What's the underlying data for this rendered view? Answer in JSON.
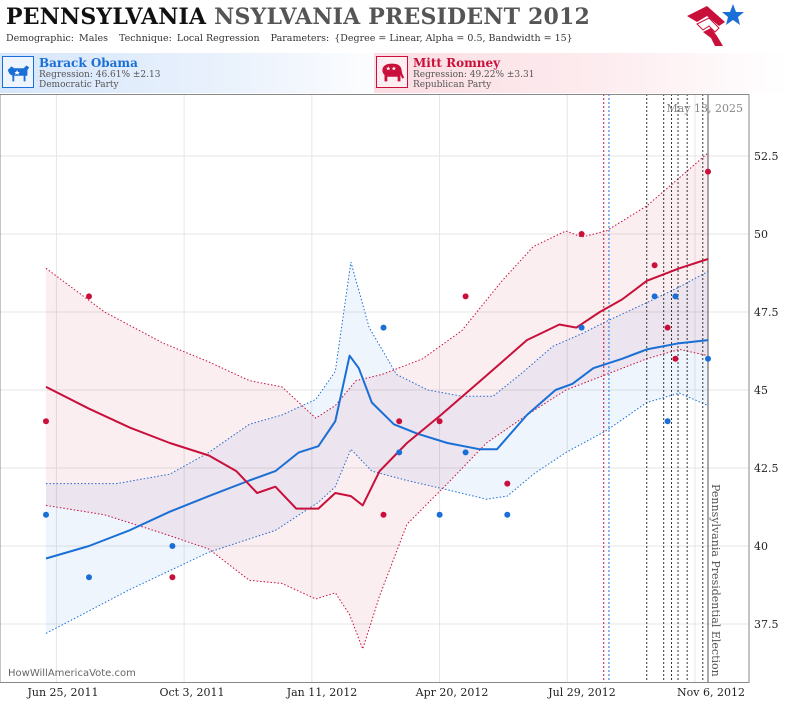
{
  "header": {
    "title_state": "PENNSYLVANIA",
    "title_rest": "NSYLVANIA PRESIDENT 2012",
    "demographic_label": "Demographic:",
    "demographic_value": "Males",
    "technique_label": "Technique:",
    "technique_value": "Local Regression",
    "parameters_label": "Parameters:",
    "parameters_value": "{Degree = Linear, Alpha = 0.5, Bandwidth = 15}",
    "logo_icon": "star-flag-logo-icon"
  },
  "candidates": {
    "dem": {
      "name": "Barack Obama",
      "regression": "Regression: 46.61% ±2.13",
      "party": "Democratic Party",
      "icon": "donkey-icon",
      "color": "#1a6fd6"
    },
    "rep": {
      "name": "Mitt Romney",
      "regression": "Regression: 49.22% ±3.31",
      "party": "Republican Party",
      "icon": "elephant-icon",
      "color": "#c8103a"
    }
  },
  "watermark": "HowWillAmericaVote.com",
  "chart_data": {
    "type": "scatter",
    "date_annotation": "May 13, 2025",
    "event_label": "Pennsylvania Presidential Election",
    "x_ticks": [
      "Jun 25, 2011",
      "Oct 3, 2011",
      "Jan 11, 2012",
      "Apr 20, 2012",
      "Jul 29, 2012",
      "Nov 6, 2012"
    ],
    "y_ticks": [
      "37.5",
      "40",
      "42.5",
      "45",
      "47.5",
      "50",
      "52.5"
    ],
    "ylim": [
      36.3,
      54.4
    ],
    "xlim": [
      "2011-06-06",
      "2012-11-20"
    ],
    "grid": true,
    "series": [
      {
        "name": "Barack Obama",
        "color": "#1a6fd6",
        "points": [
          {
            "x": "2011-06-17",
            "y": 41
          },
          {
            "x": "2011-07-20",
            "y": 39
          },
          {
            "x": "2011-09-22",
            "y": 40
          },
          {
            "x": "2012-03-02",
            "y": 47
          },
          {
            "x": "2012-03-14",
            "y": 43
          },
          {
            "x": "2012-04-14",
            "y": 41
          },
          {
            "x": "2012-05-04",
            "y": 43
          },
          {
            "x": "2012-06-05",
            "y": 41
          },
          {
            "x": "2012-08-01",
            "y": 47
          },
          {
            "x": "2012-09-26",
            "y": 48
          },
          {
            "x": "2012-10-06",
            "y": 44
          },
          {
            "x": "2012-10-12",
            "y": 48
          },
          {
            "x": "2012-11-06",
            "y": 46
          }
        ],
        "trend": [
          {
            "x": "2011-06-17",
            "y": 39.6
          },
          {
            "x": "2011-07-20",
            "y": 40.0
          },
          {
            "x": "2011-08-20",
            "y": 40.5
          },
          {
            "x": "2011-09-20",
            "y": 41.1
          },
          {
            "x": "2011-10-20",
            "y": 41.6
          },
          {
            "x": "2011-11-20",
            "y": 42.1
          },
          {
            "x": "2011-12-10",
            "y": 42.4
          },
          {
            "x": "2011-12-28",
            "y": 43.0
          },
          {
            "x": "2012-01-12",
            "y": 43.2
          },
          {
            "x": "2012-01-25",
            "y": 44.0
          },
          {
            "x": "2012-02-05",
            "y": 46.1
          },
          {
            "x": "2012-02-12",
            "y": 45.7
          },
          {
            "x": "2012-02-22",
            "y": 44.6
          },
          {
            "x": "2012-03-10",
            "y": 43.9
          },
          {
            "x": "2012-03-28",
            "y": 43.6
          },
          {
            "x": "2012-04-20",
            "y": 43.3
          },
          {
            "x": "2012-05-15",
            "y": 43.1
          },
          {
            "x": "2012-05-28",
            "y": 43.1
          },
          {
            "x": "2012-06-20",
            "y": 44.2
          },
          {
            "x": "2012-07-12",
            "y": 45.0
          },
          {
            "x": "2012-07-25",
            "y": 45.2
          },
          {
            "x": "2012-08-10",
            "y": 45.7
          },
          {
            "x": "2012-09-01",
            "y": 46.0
          },
          {
            "x": "2012-09-20",
            "y": 46.3
          },
          {
            "x": "2012-10-15",
            "y": 46.5
          },
          {
            "x": "2012-11-06",
            "y": 46.6
          }
        ],
        "upper": [
          {
            "x": "2011-06-17",
            "y": 42.0
          },
          {
            "x": "2011-08-10",
            "y": 42.0
          },
          {
            "x": "2011-09-20",
            "y": 42.3
          },
          {
            "x": "2011-10-20",
            "y": 43.0
          },
          {
            "x": "2011-11-20",
            "y": 43.9
          },
          {
            "x": "2011-12-15",
            "y": 44.2
          },
          {
            "x": "2012-01-10",
            "y": 44.7
          },
          {
            "x": "2012-01-25",
            "y": 45.6
          },
          {
            "x": "2012-02-06",
            "y": 49.1
          },
          {
            "x": "2012-02-20",
            "y": 47.0
          },
          {
            "x": "2012-03-12",
            "y": 45.5
          },
          {
            "x": "2012-04-05",
            "y": 45.0
          },
          {
            "x": "2012-05-01",
            "y": 44.8
          },
          {
            "x": "2012-05-25",
            "y": 44.8
          },
          {
            "x": "2012-06-15",
            "y": 45.5
          },
          {
            "x": "2012-07-10",
            "y": 46.4
          },
          {
            "x": "2012-08-01",
            "y": 46.8
          },
          {
            "x": "2012-08-20",
            "y": 47.2
          },
          {
            "x": "2012-09-20",
            "y": 47.8
          },
          {
            "x": "2012-10-15",
            "y": 48.3
          },
          {
            "x": "2012-11-06",
            "y": 48.8
          }
        ],
        "lower": [
          {
            "x": "2011-06-17",
            "y": 37.2
          },
          {
            "x": "2011-08-20",
            "y": 38.6
          },
          {
            "x": "2011-10-20",
            "y": 39.8
          },
          {
            "x": "2011-12-10",
            "y": 40.5
          },
          {
            "x": "2012-01-12",
            "y": 41.4
          },
          {
            "x": "2012-01-25",
            "y": 41.9
          },
          {
            "x": "2012-02-06",
            "y": 43.1
          },
          {
            "x": "2012-02-22",
            "y": 42.4
          },
          {
            "x": "2012-03-20",
            "y": 42.1
          },
          {
            "x": "2012-04-20",
            "y": 41.8
          },
          {
            "x": "2012-05-20",
            "y": 41.5
          },
          {
            "x": "2012-06-05",
            "y": 41.6
          },
          {
            "x": "2012-06-25",
            "y": 42.3
          },
          {
            "x": "2012-07-20",
            "y": 43.0
          },
          {
            "x": "2012-08-20",
            "y": 43.7
          },
          {
            "x": "2012-09-20",
            "y": 44.6
          },
          {
            "x": "2012-10-15",
            "y": 44.9
          },
          {
            "x": "2012-11-06",
            "y": 44.5
          }
        ]
      },
      {
        "name": "Mitt Romney",
        "color": "#c8103a",
        "points": [
          {
            "x": "2011-06-17",
            "y": 44
          },
          {
            "x": "2011-07-20",
            "y": 48
          },
          {
            "x": "2011-09-22",
            "y": 39
          },
          {
            "x": "2012-03-02",
            "y": 41
          },
          {
            "x": "2012-03-14",
            "y": 44
          },
          {
            "x": "2012-04-14",
            "y": 44
          },
          {
            "x": "2012-05-04",
            "y": 48
          },
          {
            "x": "2012-06-05",
            "y": 42
          },
          {
            "x": "2012-08-01",
            "y": 50
          },
          {
            "x": "2012-09-26",
            "y": 49
          },
          {
            "x": "2012-10-06",
            "y": 47
          },
          {
            "x": "2012-10-12",
            "y": 46
          },
          {
            "x": "2012-11-06",
            "y": 52
          }
        ],
        "trend": [
          {
            "x": "2011-06-17",
            "y": 45.1
          },
          {
            "x": "2011-07-20",
            "y": 44.4
          },
          {
            "x": "2011-08-20",
            "y": 43.8
          },
          {
            "x": "2011-09-20",
            "y": 43.3
          },
          {
            "x": "2011-10-20",
            "y": 42.9
          },
          {
            "x": "2011-11-10",
            "y": 42.4
          },
          {
            "x": "2011-11-26",
            "y": 41.7
          },
          {
            "x": "2011-12-10",
            "y": 41.9
          },
          {
            "x": "2011-12-26",
            "y": 41.2
          },
          {
            "x": "2012-01-12",
            "y": 41.2
          },
          {
            "x": "2012-01-25",
            "y": 41.7
          },
          {
            "x": "2012-02-06",
            "y": 41.6
          },
          {
            "x": "2012-02-15",
            "y": 41.3
          },
          {
            "x": "2012-02-28",
            "y": 42.4
          },
          {
            "x": "2012-03-20",
            "y": 43.3
          },
          {
            "x": "2012-04-15",
            "y": 44.2
          },
          {
            "x": "2012-05-10",
            "y": 45.1
          },
          {
            "x": "2012-06-01",
            "y": 45.9
          },
          {
            "x": "2012-06-20",
            "y": 46.6
          },
          {
            "x": "2012-07-15",
            "y": 47.1
          },
          {
            "x": "2012-07-28",
            "y": 47.0
          },
          {
            "x": "2012-08-15",
            "y": 47.5
          },
          {
            "x": "2012-09-01",
            "y": 47.9
          },
          {
            "x": "2012-09-20",
            "y": 48.5
          },
          {
            "x": "2012-10-15",
            "y": 48.9
          },
          {
            "x": "2012-11-06",
            "y": 49.2
          }
        ],
        "upper": [
          {
            "x": "2011-06-17",
            "y": 48.9
          },
          {
            "x": "2011-08-01",
            "y": 47.5
          },
          {
            "x": "2011-09-15",
            "y": 46.5
          },
          {
            "x": "2011-10-20",
            "y": 45.9
          },
          {
            "x": "2011-11-20",
            "y": 45.3
          },
          {
            "x": "2011-12-15",
            "y": 45.1
          },
          {
            "x": "2012-01-10",
            "y": 44.1
          },
          {
            "x": "2012-01-25",
            "y": 44.5
          },
          {
            "x": "2012-02-10",
            "y": 45.3
          },
          {
            "x": "2012-03-01",
            "y": 45.5
          },
          {
            "x": "2012-04-01",
            "y": 46.0
          },
          {
            "x": "2012-05-01",
            "y": 46.9
          },
          {
            "x": "2012-06-01",
            "y": 48.5
          },
          {
            "x": "2012-06-25",
            "y": 49.6
          },
          {
            "x": "2012-07-20",
            "y": 50.1
          },
          {
            "x": "2012-08-01",
            "y": 49.9
          },
          {
            "x": "2012-08-20",
            "y": 50.1
          },
          {
            "x": "2012-09-20",
            "y": 50.9
          },
          {
            "x": "2012-10-15",
            "y": 51.8
          },
          {
            "x": "2012-11-06",
            "y": 52.6
          }
        ],
        "lower": [
          {
            "x": "2011-06-17",
            "y": 41.3
          },
          {
            "x": "2011-08-01",
            "y": 41.0
          },
          {
            "x": "2011-09-15",
            "y": 40.4
          },
          {
            "x": "2011-10-20",
            "y": 39.9
          },
          {
            "x": "2011-11-20",
            "y": 38.9
          },
          {
            "x": "2011-12-15",
            "y": 38.8
          },
          {
            "x": "2012-01-10",
            "y": 38.3
          },
          {
            "x": "2012-01-25",
            "y": 38.5
          },
          {
            "x": "2012-02-05",
            "y": 37.8
          },
          {
            "x": "2012-02-15",
            "y": 36.7
          },
          {
            "x": "2012-02-28",
            "y": 38.4
          },
          {
            "x": "2012-03-20",
            "y": 40.7
          },
          {
            "x": "2012-04-20",
            "y": 42.0
          },
          {
            "x": "2012-05-20",
            "y": 43.3
          },
          {
            "x": "2012-06-20",
            "y": 44.2
          },
          {
            "x": "2012-07-20",
            "y": 45.0
          },
          {
            "x": "2012-08-20",
            "y": 45.5
          },
          {
            "x": "2012-09-20",
            "y": 46.0
          },
          {
            "x": "2012-10-15",
            "y": 46.3
          },
          {
            "x": "2012-11-06",
            "y": 46.1
          }
        ]
      }
    ],
    "vertical_markers": [
      {
        "x": "2012-08-18",
        "style": "dotted",
        "color": "#c8103a"
      },
      {
        "x": "2012-08-22",
        "style": "dotted",
        "color": "#1a6fd6"
      },
      {
        "x": "2012-09-20",
        "style": "dotted",
        "color": "#333333"
      },
      {
        "x": "2012-10-03",
        "style": "dotted",
        "color": "#333333"
      },
      {
        "x": "2012-10-09",
        "style": "dotted",
        "color": "#333333"
      },
      {
        "x": "2012-10-14",
        "style": "dotted",
        "color": "#333333"
      },
      {
        "x": "2012-10-21",
        "style": "dotted",
        "color": "#333333"
      },
      {
        "x": "2012-11-02",
        "style": "dotted",
        "color": "#333333"
      },
      {
        "x": "2012-11-06",
        "style": "solid",
        "color": "#555555"
      }
    ]
  }
}
